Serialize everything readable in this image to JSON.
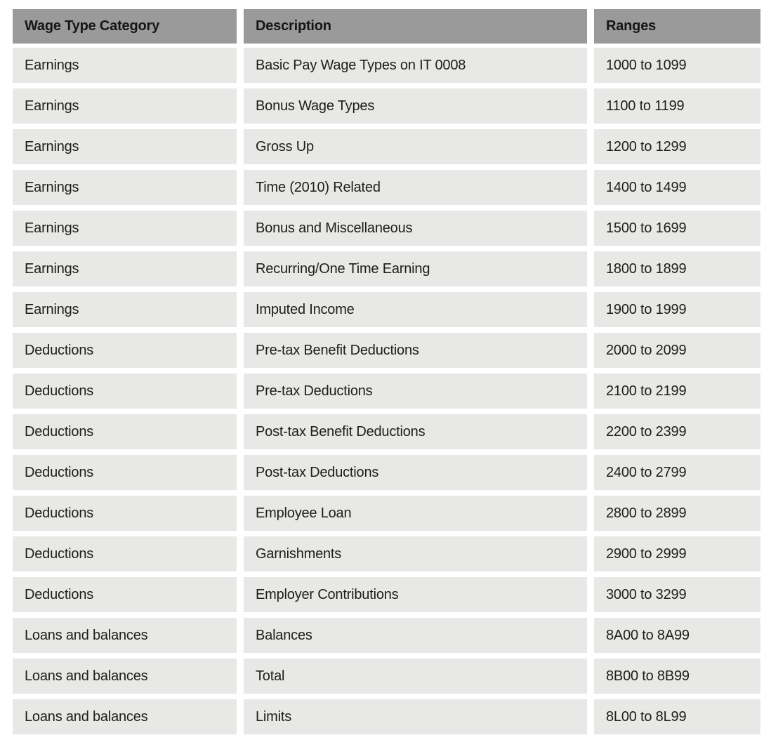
{
  "colors": {
    "page_background": "#ffffff",
    "header_background": "#9a9a9a",
    "row_background": "#e8e8e7",
    "text": "#1d1d1b"
  },
  "table": {
    "columns": [
      "Wage Type Category",
      "Description",
      "Ranges"
    ],
    "rows": [
      [
        "Earnings",
        "Basic Pay Wage Types on IT 0008",
        "1000 to 1099"
      ],
      [
        "Earnings",
        "Bonus Wage Types",
        "1100 to 1199"
      ],
      [
        "Earnings",
        "Gross Up",
        "1200 to 1299"
      ],
      [
        "Earnings",
        "Time (2010) Related",
        "1400 to 1499"
      ],
      [
        "Earnings",
        "Bonus and Miscellaneous",
        "1500 to 1699"
      ],
      [
        "Earnings",
        "Recurring/One Time Earning",
        "1800 to 1899"
      ],
      [
        "Earnings",
        "Imputed Income",
        "1900 to 1999"
      ],
      [
        "Deductions",
        "Pre-tax Benefit Deductions",
        "2000 to 2099"
      ],
      [
        "Deductions",
        "Pre-tax Deductions",
        "2100 to 2199"
      ],
      [
        "Deductions",
        "Post-tax Benefit Deductions",
        "2200 to 2399"
      ],
      [
        "Deductions",
        "Post-tax Deductions",
        "2400 to 2799"
      ],
      [
        "Deductions",
        "Employee Loan",
        "2800 to 2899"
      ],
      [
        "Deductions",
        "Garnishments",
        "2900 to 2999"
      ],
      [
        "Deductions",
        "Employer Contributions",
        "3000 to 3299"
      ],
      [
        "Loans and balances",
        "Balances",
        "8A00 to 8A99"
      ],
      [
        "Loans and balances",
        "Total",
        "8B00 to 8B99"
      ],
      [
        "Loans and balances",
        "Limits",
        "8L00 to 8L99"
      ]
    ]
  }
}
